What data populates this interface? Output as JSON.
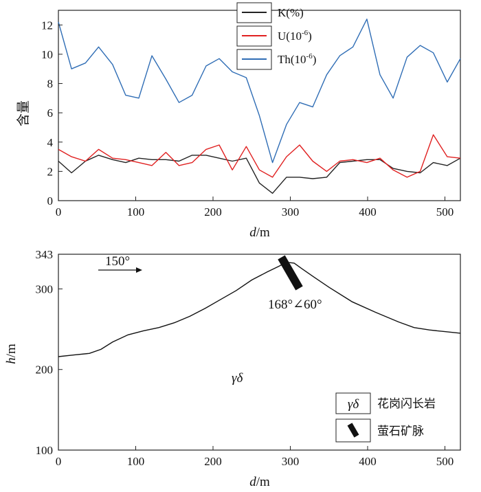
{
  "chart_data": [
    {
      "type": "line",
      "ylabel": "含量",
      "xlabel": {
        "var": "d",
        "unit": "m"
      },
      "xlim": [
        0,
        520
      ],
      "ylim": [
        0,
        13
      ],
      "x_ticks": [
        "0",
        "100",
        "200",
        "300",
        "400",
        "500"
      ],
      "y_ticks": [
        "0",
        "2",
        "4",
        "6",
        "8",
        "10",
        "12"
      ],
      "x": [
        0,
        17,
        35,
        52,
        70,
        87,
        104,
        121,
        139,
        156,
        173,
        191,
        208,
        225,
        243,
        260,
        277,
        295,
        312,
        329,
        347,
        364,
        381,
        399,
        416,
        433,
        451,
        468,
        485,
        503,
        520
      ],
      "series": [
        {
          "name": "K(%)",
          "color": "#222222",
          "values": [
            2.7,
            1.9,
            2.7,
            3.1,
            2.8,
            2.6,
            2.9,
            2.8,
            2.8,
            2.7,
            3.1,
            3.1,
            2.9,
            2.7,
            2.9,
            1.2,
            0.5,
            1.6,
            1.6,
            1.5,
            1.6,
            2.6,
            2.7,
            2.8,
            2.8,
            2.2,
            2.0,
            1.9,
            2.6,
            2.4,
            2.9
          ]
        },
        {
          "name": "U(10-6)",
          "label_base": "U(10",
          "label_sup": "-6",
          "label_tail": ")",
          "color": "#e02020",
          "values": [
            3.5,
            3.0,
            2.7,
            3.5,
            2.9,
            2.8,
            2.6,
            2.4,
            3.3,
            2.4,
            2.6,
            3.5,
            3.8,
            2.1,
            3.7,
            2.1,
            1.6,
            3.0,
            3.8,
            2.7,
            2.0,
            2.7,
            2.8,
            2.6,
            2.9,
            2.1,
            1.6,
            2.0,
            4.5,
            3.0,
            2.9
          ]
        },
        {
          "name": "Th(10-6)",
          "label_base": "Th(10",
          "label_sup": "-6",
          "label_tail": ")",
          "color": "#2f6db5",
          "values": [
            12.2,
            9.0,
            9.4,
            10.5,
            9.3,
            7.2,
            7.0,
            9.9,
            8.3,
            6.7,
            7.2,
            9.2,
            9.7,
            8.8,
            8.4,
            5.8,
            2.6,
            5.2,
            6.7,
            6.4,
            8.6,
            9.9,
            10.5,
            12.4,
            8.6,
            7.0,
            9.8,
            10.6,
            10.1,
            8.1,
            9.7
          ]
        }
      ]
    },
    {
      "type": "line",
      "ylabel": {
        "var": "h",
        "unit": "m"
      },
      "xlabel": {
        "var": "d",
        "unit": "m"
      },
      "xlim": [
        0,
        520
      ],
      "ylim": [
        100,
        343
      ],
      "x_ticks": [
        "0",
        "100",
        "200",
        "300",
        "400",
        "500"
      ],
      "y_ticks": [
        "100",
        "200",
        "300",
        "343"
      ],
      "terrain": {
        "x": [
          0,
          20,
          40,
          55,
          70,
          90,
          110,
          130,
          150,
          170,
          190,
          210,
          230,
          250,
          270,
          285,
          295,
          305,
          315,
          330,
          350,
          380,
          410,
          440,
          460,
          480,
          500,
          520
        ],
        "h": [
          216,
          218,
          220,
          225,
          234,
          243,
          248,
          252,
          258,
          266,
          276,
          287,
          298,
          311,
          321,
          328,
          333,
          332,
          325,
          315,
          302,
          284,
          271,
          259,
          252,
          249,
          247,
          245
        ]
      },
      "direction_label": "150°",
      "attitude_label": "168°∠60°",
      "rock_label": "γδ",
      "vein": {
        "x": 300,
        "h": 320
      },
      "legend": [
        {
          "symbol": "γδ",
          "label": "花岗闪长岩"
        },
        {
          "symbol": "vein",
          "label": "萤石矿脉"
        }
      ]
    }
  ]
}
